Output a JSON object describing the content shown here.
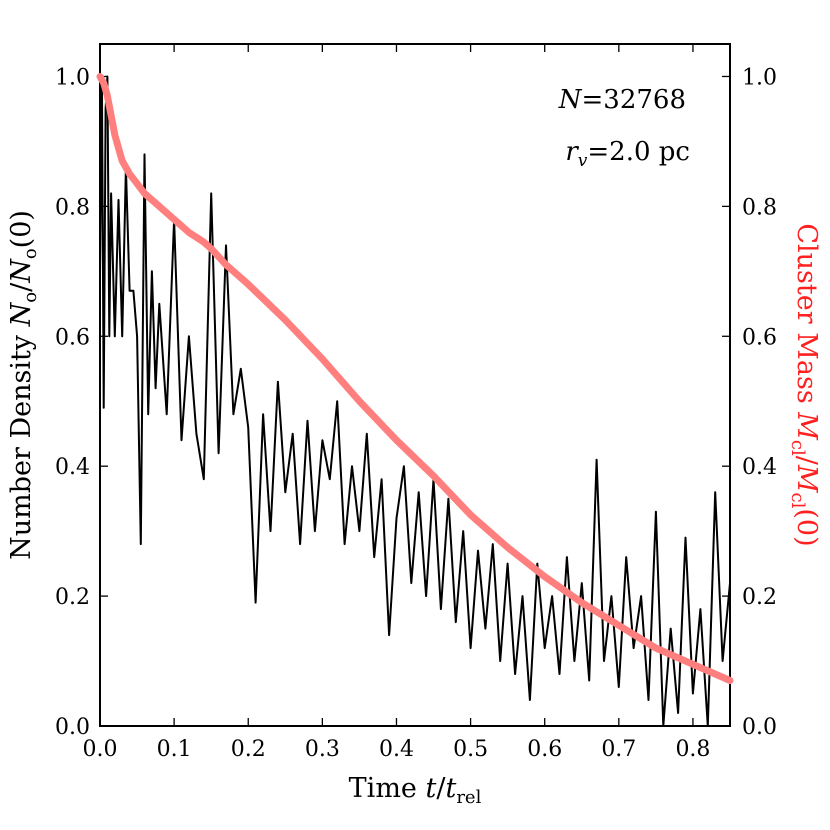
{
  "chart_data": {
    "type": "line",
    "title": "",
    "xlabel": {
      "prefix": "Time ",
      "var": "t",
      "slash": "/",
      "var2": "t",
      "sub": "rel"
    },
    "ylabel": {
      "prefix": "Number Density ",
      "var": "N",
      "sub": "o",
      "suffix": "(0)"
    },
    "y2label": {
      "prefix": "Cluster Mass ",
      "var": "M",
      "sub": "cl",
      "suffix": "(0)"
    },
    "xlim": [
      0.0,
      0.85
    ],
    "ylim": [
      0.0,
      1.05
    ],
    "y2lim": [
      0.0,
      1.05
    ],
    "xticks": [
      "0.0",
      "0.1",
      "0.2",
      "0.3",
      "0.4",
      "0.5",
      "0.6",
      "0.7",
      "0.8"
    ],
    "yticks": [
      "0.0",
      "0.2",
      "0.4",
      "0.6",
      "0.8",
      "1.0"
    ],
    "y2ticks": [
      "0.0",
      "0.2",
      "0.4",
      "0.6",
      "0.8",
      "1.0"
    ],
    "annotations": {
      "n_var": "N",
      "n_value": "=32768",
      "r_var": "r",
      "r_sub": "v",
      "r_value": "=2.0 pc"
    },
    "series": [
      {
        "name": "Number Density",
        "color": "#000000",
        "axis": "left",
        "x": [
          0.0,
          0.0025,
          0.005,
          0.0075,
          0.01,
          0.0125,
          0.015,
          0.02,
          0.025,
          0.03,
          0.035,
          0.04,
          0.045,
          0.05,
          0.055,
          0.06,
          0.065,
          0.07,
          0.075,
          0.08,
          0.09,
          0.1,
          0.11,
          0.12,
          0.13,
          0.14,
          0.15,
          0.16,
          0.17,
          0.18,
          0.19,
          0.2,
          0.21,
          0.22,
          0.23,
          0.24,
          0.25,
          0.26,
          0.27,
          0.28,
          0.29,
          0.3,
          0.31,
          0.32,
          0.33,
          0.34,
          0.35,
          0.36,
          0.37,
          0.38,
          0.39,
          0.4,
          0.41,
          0.42,
          0.43,
          0.44,
          0.45,
          0.46,
          0.47,
          0.48,
          0.49,
          0.5,
          0.51,
          0.52,
          0.53,
          0.54,
          0.55,
          0.56,
          0.57,
          0.58,
          0.59,
          0.6,
          0.61,
          0.62,
          0.63,
          0.64,
          0.65,
          0.66,
          0.67,
          0.68,
          0.69,
          0.7,
          0.71,
          0.72,
          0.73,
          0.74,
          0.75,
          0.76,
          0.77,
          0.78,
          0.79,
          0.8,
          0.81,
          0.82,
          0.83,
          0.84,
          0.85
        ],
        "values": [
          0.7,
          1.0,
          0.49,
          0.95,
          1.0,
          0.6,
          0.82,
          0.6,
          0.81,
          0.6,
          0.86,
          0.67,
          0.67,
          0.6,
          0.28,
          0.88,
          0.48,
          0.7,
          0.52,
          0.65,
          0.48,
          0.78,
          0.44,
          0.6,
          0.45,
          0.38,
          0.82,
          0.42,
          0.74,
          0.48,
          0.55,
          0.46,
          0.19,
          0.48,
          0.3,
          0.53,
          0.36,
          0.45,
          0.28,
          0.47,
          0.3,
          0.44,
          0.38,
          0.5,
          0.28,
          0.4,
          0.3,
          0.45,
          0.26,
          0.38,
          0.14,
          0.32,
          0.4,
          0.22,
          0.36,
          0.2,
          0.38,
          0.18,
          0.35,
          0.16,
          0.3,
          0.12,
          0.27,
          0.15,
          0.28,
          0.1,
          0.25,
          0.08,
          0.2,
          0.04,
          0.25,
          0.12,
          0.2,
          0.08,
          0.26,
          0.1,
          0.22,
          0.07,
          0.41,
          0.1,
          0.2,
          0.06,
          0.26,
          0.12,
          0.2,
          0.04,
          0.33,
          0.0,
          0.15,
          0.02,
          0.29,
          0.05,
          0.18,
          0.0,
          0.36,
          0.1,
          0.22
        ]
      },
      {
        "name": "Cluster Mass",
        "color": "#ff7f7f",
        "axis": "right",
        "x": [
          0.0,
          0.005,
          0.01,
          0.015,
          0.02,
          0.025,
          0.03,
          0.04,
          0.05,
          0.06,
          0.08,
          0.1,
          0.12,
          0.14,
          0.15,
          0.17,
          0.2,
          0.25,
          0.3,
          0.35,
          0.4,
          0.45,
          0.5,
          0.55,
          0.6,
          0.65,
          0.7,
          0.75,
          0.8,
          0.85
        ],
        "values": [
          1.0,
          0.99,
          0.97,
          0.94,
          0.91,
          0.89,
          0.87,
          0.85,
          0.835,
          0.82,
          0.8,
          0.78,
          0.76,
          0.745,
          0.735,
          0.71,
          0.68,
          0.625,
          0.565,
          0.5,
          0.44,
          0.385,
          0.325,
          0.275,
          0.23,
          0.19,
          0.155,
          0.12,
          0.095,
          0.07
        ]
      }
    ]
  }
}
